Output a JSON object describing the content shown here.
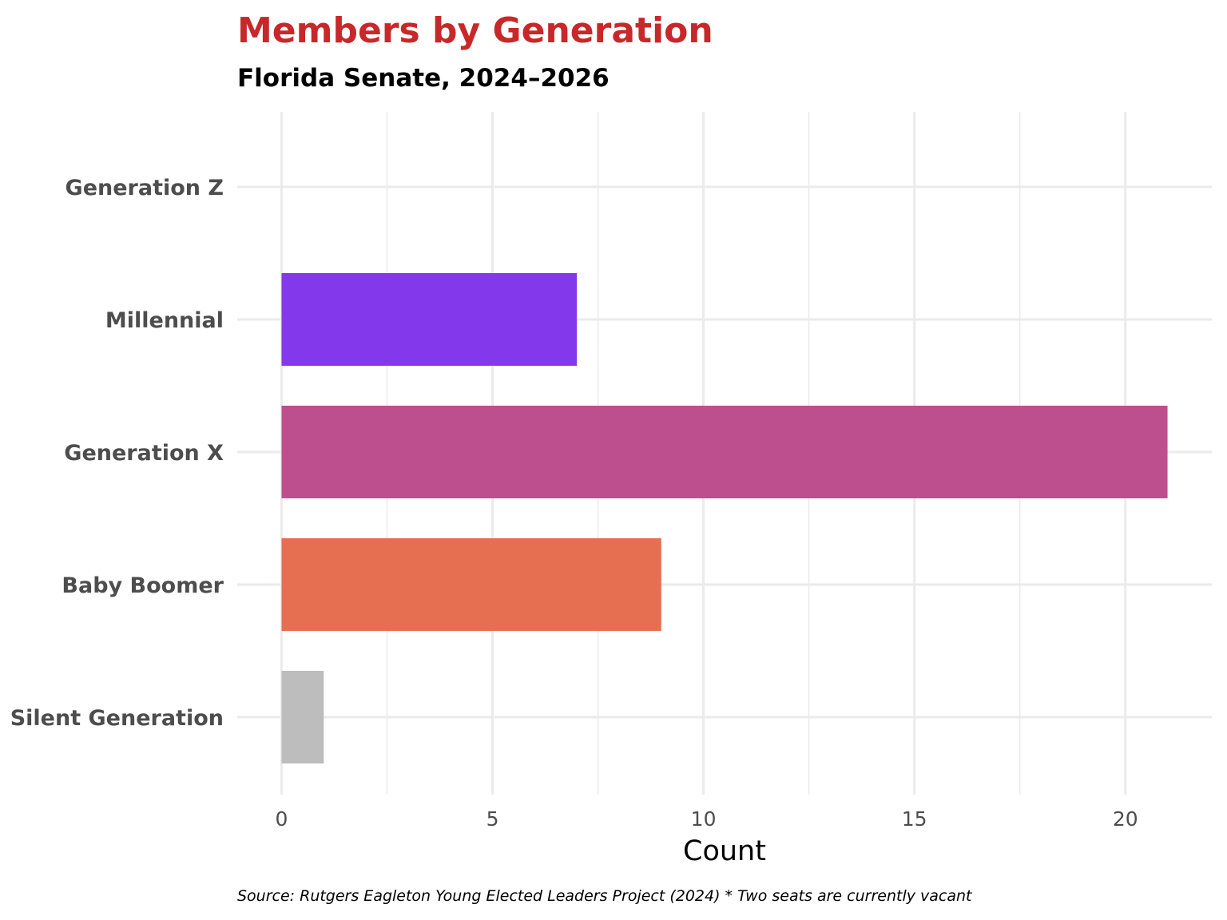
{
  "chart_data": {
    "type": "bar",
    "orientation": "horizontal",
    "title": "Members by Generation",
    "subtitle": "Florida Senate, 2024–2026",
    "xlabel": "Count",
    "ylabel": "",
    "caption": "Source: Rutgers Eagleton Young Elected Leaders Project (2024) * Two seats are currently vacant",
    "categories": [
      "Generation Z",
      "Millennial",
      "Generation X",
      "Baby Boomer",
      "Silent Generation"
    ],
    "values": [
      0,
      7,
      21,
      9,
      1
    ],
    "colors": [
      "#8338ec",
      "#8338ec",
      "#be4f8f",
      "#e76f51",
      "#bdbdbd"
    ],
    "xlim": [
      -1.05,
      22.05
    ],
    "xticks": [
      0,
      5,
      10,
      15,
      20
    ],
    "grid": true,
    "legend": "none",
    "title_color": "#c8282a"
  }
}
